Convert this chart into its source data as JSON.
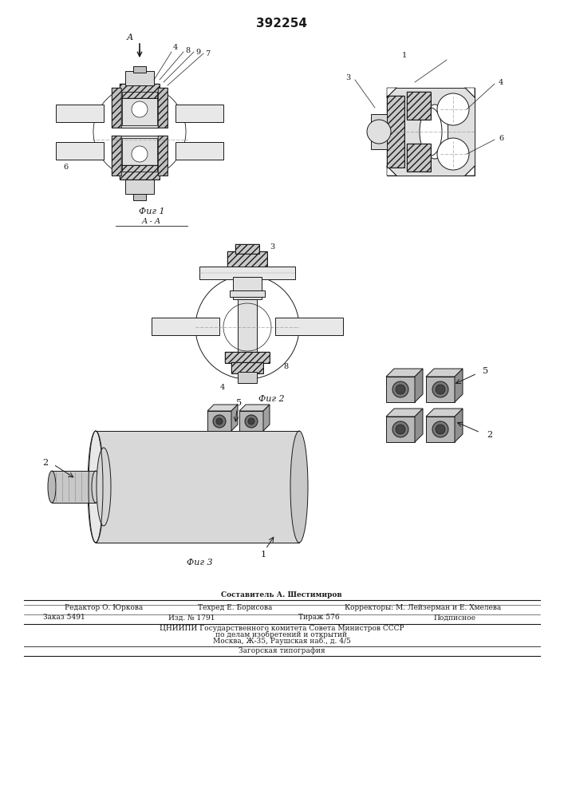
{
  "patent_number": "392254",
  "background_color": "#ffffff",
  "line_color": "#1a1a1a",
  "fig_width": 7.07,
  "fig_height": 10.0,
  "footer_line1": "Редактор О. Юркова      Составитель А. Шестимиров",
  "footer_line1b": "Техред Е. Борисова      Корректоры: М. Лейзерман и Е. Хмелева",
  "footer_line2": "Заказ 5491",
  "footer_line2b": "Изд. № 1791",
  "footer_line2c": "Тираж 576",
  "footer_line2d": "Подписное",
  "footer_line3": "ЦНИИПИ Государственного комитета Совета Министров СССР",
  "footer_line4": "по делам изобретений и открытий",
  "footer_line5": "Москва, Ж-35, Раушская наб., д. 4/5",
  "footer_line6": "Загорская типография",
  "fig1_label": "Фиг 1",
  "fig2_label": "Фиг 2",
  "fig3_label": "Фиг 3",
  "section_label": "А - А",
  "arrow_label": "А"
}
